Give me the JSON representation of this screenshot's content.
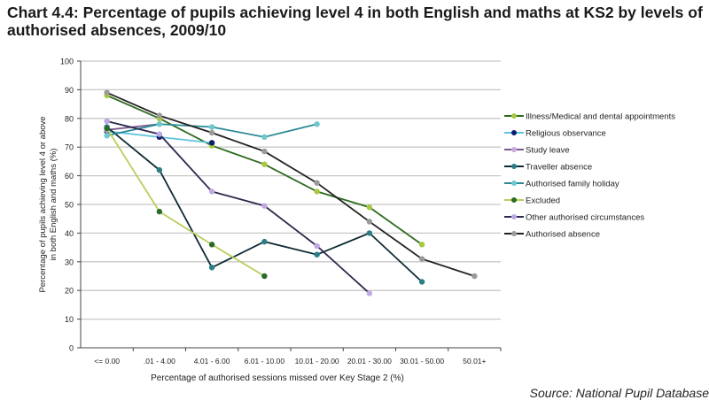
{
  "chart_data": {
    "type": "line",
    "title": "Chart 4.4: Percentage of pupils achieving level 4 in both English and maths at KS2 by levels of authorised absences, 2009/10",
    "xlabel": "Percentage of authorised sessions missed over Key Stage 2 (%)",
    "ylabel": "Percentage of pupils achieving level 4 or above in both English and maths (%)",
    "ylabel_lines": [
      "Percentage of pupils achieving level 4 or above",
      "in both English and maths (%)"
    ],
    "categories": [
      "<= 0.00",
      ".01 - 4.00",
      "4.01 - 6.00",
      "6.01 - 10.00",
      "10.01 - 20.00",
      "20.01 - 30.00",
      "30.01 - 50.00",
      "50.01+"
    ],
    "ylim": [
      0,
      100
    ],
    "yticks": [
      0,
      10,
      20,
      30,
      40,
      50,
      60,
      70,
      80,
      90,
      100
    ],
    "grid": true,
    "legend": "right",
    "series": [
      {
        "name": "Illness/Medical and dental appointments",
        "line": "#2f6b1f",
        "marker": "#a8c840",
        "values": [
          88,
          80,
          70.5,
          64,
          54.5,
          49,
          36,
          null
        ]
      },
      {
        "name": "Religious observance",
        "line": "#5fc4dc",
        "marker": "#0b1f6e",
        "values": [
          75.5,
          73.5,
          71.5,
          null,
          null,
          null,
          null,
          null
        ]
      },
      {
        "name": "Study leave",
        "line": "#7a5a8e",
        "marker": "#c8a8e0",
        "values": [
          76,
          78,
          null,
          null,
          null,
          null,
          null,
          null
        ]
      },
      {
        "name": "Traveller absence",
        "line": "#0e2a33",
        "marker": "#2a7f86",
        "values": [
          77,
          62,
          28,
          37,
          32.5,
          40,
          23,
          null
        ]
      },
      {
        "name": "Authorised family holiday",
        "line": "#2a8a96",
        "marker": "#6cc8cc",
        "values": [
          74,
          78,
          77,
          73.5,
          78,
          null,
          null,
          null
        ]
      },
      {
        "name": "Excluded",
        "line": "#b8cf5a",
        "marker": "#2a6b2a",
        "values": [
          76.5,
          47.5,
          36,
          25,
          null,
          null,
          null,
          null
        ]
      },
      {
        "name": "Other authorised circumstances",
        "line": "#2e2a4e",
        "marker": "#bfa8e6",
        "values": [
          79,
          74.5,
          54.5,
          49.5,
          35.5,
          19,
          null,
          null
        ]
      },
      {
        "name": "Authorised absence",
        "line": "#222222",
        "marker": "#9a9a9a",
        "values": [
          89,
          81,
          75,
          68.5,
          57.5,
          44,
          31,
          25
        ]
      }
    ]
  },
  "source": "Source: National Pupil Database"
}
